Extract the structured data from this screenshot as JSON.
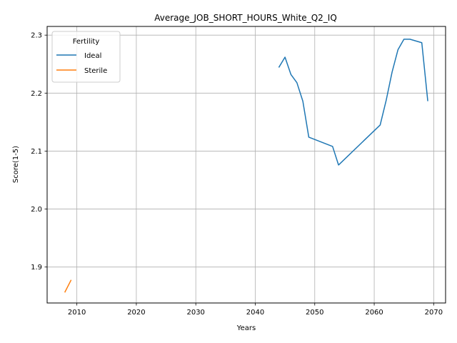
{
  "chart_data": {
    "type": "line",
    "title": "Average_JOB_SHORT_HOURS_White_Q2_IQ",
    "xlabel": "Years",
    "ylabel": "Score(1-5)",
    "xlim": [
      2005.0,
      2072.0
    ],
    "ylim": [
      1.838,
      2.315
    ],
    "xticks": [
      2010,
      2020,
      2030,
      2040,
      2050,
      2060,
      2070
    ],
    "yticks": [
      1.9,
      2.0,
      2.1,
      2.2,
      2.3
    ],
    "xtick_labels": [
      "2010",
      "2020",
      "2030",
      "2040",
      "2050",
      "2060",
      "2070"
    ],
    "ytick_labels": [
      "1.9",
      "2.0",
      "2.1",
      "2.2",
      "2.3"
    ],
    "grid": true,
    "legend": {
      "title": "Fertility",
      "position": "upper-left"
    },
    "series": [
      {
        "name": "Ideal",
        "color": "#1f77b4",
        "x": [
          2044,
          2045,
          2046,
          2047,
          2048,
          2049,
          2053,
          2054,
          2061,
          2062,
          2063,
          2064,
          2065,
          2066,
          2068,
          2069
        ],
        "y": [
          2.245,
          2.262,
          2.232,
          2.218,
          2.186,
          2.124,
          2.108,
          2.076,
          2.145,
          2.187,
          2.236,
          2.275,
          2.293,
          2.293,
          2.287,
          2.187
        ]
      },
      {
        "name": "Sterile",
        "color": "#ff7f0e",
        "x": [
          2008,
          2009
        ],
        "y": [
          1.857,
          1.877
        ]
      }
    ]
  }
}
